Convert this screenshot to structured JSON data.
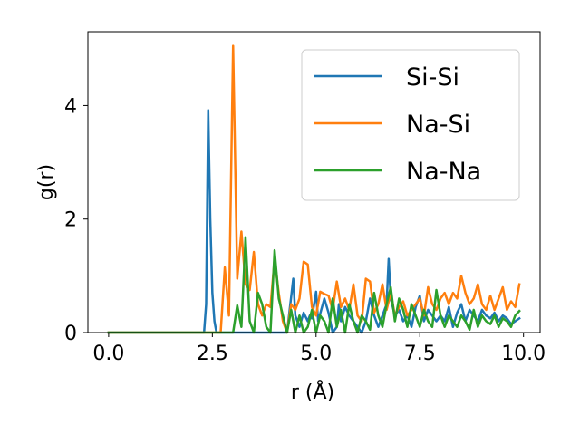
{
  "chart_data": {
    "type": "line",
    "title": "",
    "xlabel": "r (Å)",
    "ylabel": "g(r)",
    "xlim": [
      -0.5,
      10.4
    ],
    "ylim": [
      0,
      5.3
    ],
    "xticks": [
      0.0,
      2.5,
      5.0,
      7.5,
      10.0
    ],
    "xtick_labels": [
      "0.0",
      "2.5",
      "5.0",
      "7.5",
      "10.0"
    ],
    "yticks": [
      0,
      2,
      4
    ],
    "ytick_labels": [
      "0",
      "2",
      "4"
    ],
    "grid": false,
    "legend_position": "upper-right",
    "series": [
      {
        "name": "Si-Si",
        "color": "#1f77b4",
        "x": [
          0.0,
          2.3,
          2.35,
          2.4,
          2.45,
          2.5,
          2.55,
          2.6,
          4.3,
          4.45,
          4.5,
          4.6,
          4.7,
          4.8,
          4.85,
          4.9,
          5.0,
          5.05,
          5.2,
          5.3,
          5.4,
          5.5,
          5.55,
          5.6,
          5.7,
          5.8,
          5.9,
          6.0,
          6.1,
          6.2,
          6.3,
          6.4,
          6.5,
          6.6,
          6.7,
          6.75,
          6.8,
          6.9,
          7.0,
          7.1,
          7.2,
          7.3,
          7.4,
          7.5,
          7.6,
          7.7,
          7.8,
          7.9,
          8.0,
          8.1,
          8.2,
          8.3,
          8.4,
          8.5,
          8.6,
          8.7,
          8.8,
          8.9,
          9.0,
          9.1,
          9.2,
          9.3,
          9.4,
          9.5,
          9.6,
          9.7,
          9.8,
          9.9
        ],
        "y": [
          0,
          0,
          0.5,
          3.92,
          2.0,
          0.7,
          0.2,
          0,
          0,
          0.95,
          0.3,
          0.1,
          0.35,
          0.2,
          0.3,
          0.25,
          0.72,
          0.2,
          0.6,
          0.35,
          0,
          0.1,
          0.5,
          0.2,
          0.45,
          0.3,
          0.2,
          0.1,
          0,
          0.2,
          0.6,
          0.3,
          0.1,
          0.3,
          0.5,
          1.3,
          0.6,
          0.3,
          0.4,
          0.2,
          0.3,
          0.1,
          0.45,
          0.65,
          0.2,
          0.4,
          0.3,
          0.2,
          0.3,
          0.2,
          0.45,
          0.1,
          0.35,
          0.5,
          0.2,
          0.4,
          0.3,
          0.2,
          0.4,
          0.3,
          0.25,
          0.35,
          0.2,
          0.3,
          0.25,
          0.15,
          0.2,
          0.25
        ]
      },
      {
        "name": "Na-Si",
        "color": "#ff7f0e",
        "x": [
          0.0,
          2.7,
          2.8,
          2.9,
          3.0,
          3.1,
          3.2,
          3.3,
          3.4,
          3.5,
          3.6,
          3.7,
          3.8,
          3.9,
          4.0,
          4.1,
          4.2,
          4.3,
          4.4,
          4.5,
          4.6,
          4.7,
          4.8,
          4.9,
          5.0,
          5.1,
          5.2,
          5.3,
          5.4,
          5.5,
          5.6,
          5.7,
          5.8,
          5.9,
          6.0,
          6.1,
          6.2,
          6.3,
          6.4,
          6.5,
          6.6,
          6.7,
          6.8,
          6.9,
          7.0,
          7.1,
          7.2,
          7.3,
          7.4,
          7.5,
          7.6,
          7.7,
          7.8,
          7.9,
          8.0,
          8.1,
          8.2,
          8.3,
          8.4,
          8.5,
          8.6,
          8.7,
          8.8,
          8.9,
          9.0,
          9.1,
          9.2,
          9.3,
          9.4,
          9.5,
          9.6,
          9.7,
          9.8,
          9.9
        ],
        "y": [
          0,
          0,
          1.15,
          0.3,
          5.05,
          0.95,
          1.78,
          0.85,
          0.75,
          1.42,
          0.5,
          0.3,
          0.5,
          0.45,
          1.3,
          0.7,
          0.2,
          0,
          0.5,
          0.4,
          0.6,
          1.25,
          1.2,
          0.45,
          0.3,
          0.72,
          0.68,
          0.65,
          0.4,
          0.9,
          0.45,
          0.6,
          0.4,
          0.85,
          0.3,
          0.2,
          0.95,
          0.9,
          0.35,
          0.5,
          0.85,
          0.4,
          0.7,
          0.3,
          0.45,
          0.55,
          0.3,
          0.4,
          0.5,
          0.6,
          0.3,
          0.8,
          0.5,
          0.4,
          0.6,
          0.7,
          0.5,
          0.7,
          0.6,
          1.0,
          0.7,
          0.5,
          0.6,
          0.85,
          0.5,
          0.4,
          0.65,
          0.4,
          0.6,
          0.8,
          0.4,
          0.55,
          0.45,
          0.85
        ]
      },
      {
        "name": "Na-Na",
        "color": "#2ca02c",
        "x": [
          0.0,
          2.9,
          3.0,
          3.1,
          3.2,
          3.3,
          3.4,
          3.5,
          3.6,
          3.7,
          3.8,
          3.9,
          4.0,
          4.1,
          4.2,
          4.3,
          4.4,
          4.5,
          4.6,
          4.7,
          4.8,
          4.9,
          5.0,
          5.1,
          5.2,
          5.3,
          5.4,
          5.5,
          5.6,
          5.7,
          5.8,
          5.9,
          6.0,
          6.1,
          6.2,
          6.3,
          6.4,
          6.5,
          6.6,
          6.7,
          6.8,
          6.9,
          7.0,
          7.1,
          7.2,
          7.3,
          7.4,
          7.5,
          7.6,
          7.7,
          7.8,
          7.9,
          8.0,
          8.1,
          8.2,
          8.3,
          8.4,
          8.5,
          8.6,
          8.7,
          8.8,
          8.9,
          9.0,
          9.1,
          9.2,
          9.3,
          9.4,
          9.5,
          9.6,
          9.7,
          9.8,
          9.9
        ],
        "y": [
          0,
          0,
          0,
          0.48,
          0.1,
          1.68,
          0.2,
          0,
          0.7,
          0.5,
          0.1,
          0,
          1.45,
          0.6,
          0.3,
          0,
          0.4,
          0,
          0.3,
          0,
          0.1,
          0.4,
          0,
          0.3,
          0.2,
          0,
          0.6,
          0.1,
          0.4,
          0,
          0.5,
          0.2,
          0,
          0.3,
          0.2,
          0.05,
          0.7,
          0.3,
          0.1,
          0.5,
          0.8,
          0.2,
          0.6,
          0.4,
          0.1,
          0.5,
          0.3,
          0.1,
          0.4,
          0.2,
          0.1,
          0.75,
          0.3,
          0.1,
          0.3,
          0.2,
          0.1,
          0.3,
          0.2,
          0.05,
          0.4,
          0.1,
          0.3,
          0.2,
          0.15,
          0.3,
          0.1,
          0.25,
          0.2,
          0.1,
          0.3,
          0.38
        ]
      }
    ]
  }
}
